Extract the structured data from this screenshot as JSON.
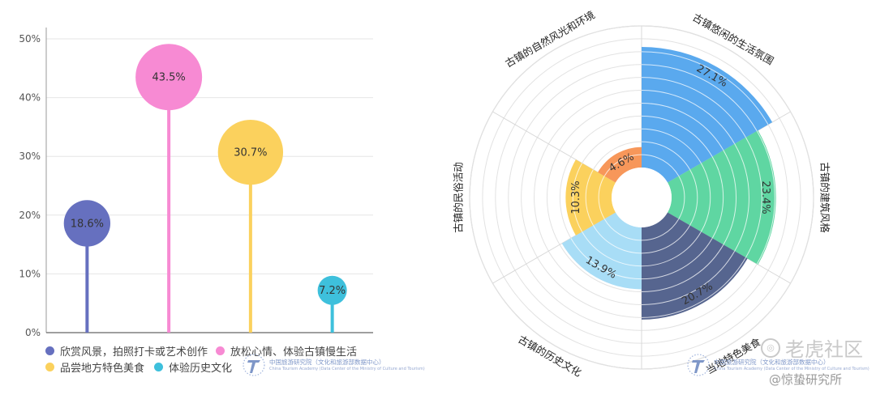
{
  "chart_data": [
    {
      "type": "bar",
      "style": "lollipop",
      "categories": [
        "欣赏风景，拍照打卡或艺术创作",
        "放松心情、体验古镇慢生活",
        "品尝地方特色美食",
        "体验历史文化"
      ],
      "values": [
        18.6,
        43.5,
        30.7,
        7.2
      ],
      "value_labels": [
        "18.6%",
        "43.5%",
        "30.7%",
        "7.2%"
      ],
      "colors": [
        "#6670bf",
        "#f78ad3",
        "#fbd15d",
        "#3ec0dc"
      ],
      "yticks": [
        "0%",
        "10%",
        "20%",
        "30%",
        "40%",
        "50%"
      ],
      "ylim": [
        0,
        50
      ],
      "grid": true,
      "legend_position": "bottom"
    },
    {
      "type": "pie",
      "style": "polar-area",
      "categories": [
        "古镇悠闲的生活氛围",
        "古镇的建筑风格",
        "当地特色美食",
        "古镇的历史文化",
        "古镇的民俗活动",
        "古镇的自然风光和环境"
      ],
      "values": [
        27.1,
        23.4,
        20.7,
        13.9,
        10.3,
        4.6
      ],
      "value_labels": [
        "27.1%",
        "23.4%",
        "20.7%",
        "13.9%",
        "10.3%",
        "4.6%"
      ],
      "colors": [
        "#5aa9ee",
        "#5fd6a2",
        "#56658f",
        "#a8ddf6",
        "#fbd15d",
        "#f7975a"
      ],
      "rmax": 30,
      "grid": true
    }
  ],
  "logo": {
    "cn": "中国旅游研究院（文化和旅游部数据中心）",
    "en": "China Tourism Academy (Data Center of the Ministry of Culture and Tourism)",
    "color": "#7f97c8"
  },
  "watermark": {
    "brand": "老虎社区",
    "handle": "@惊蛰研究所"
  }
}
